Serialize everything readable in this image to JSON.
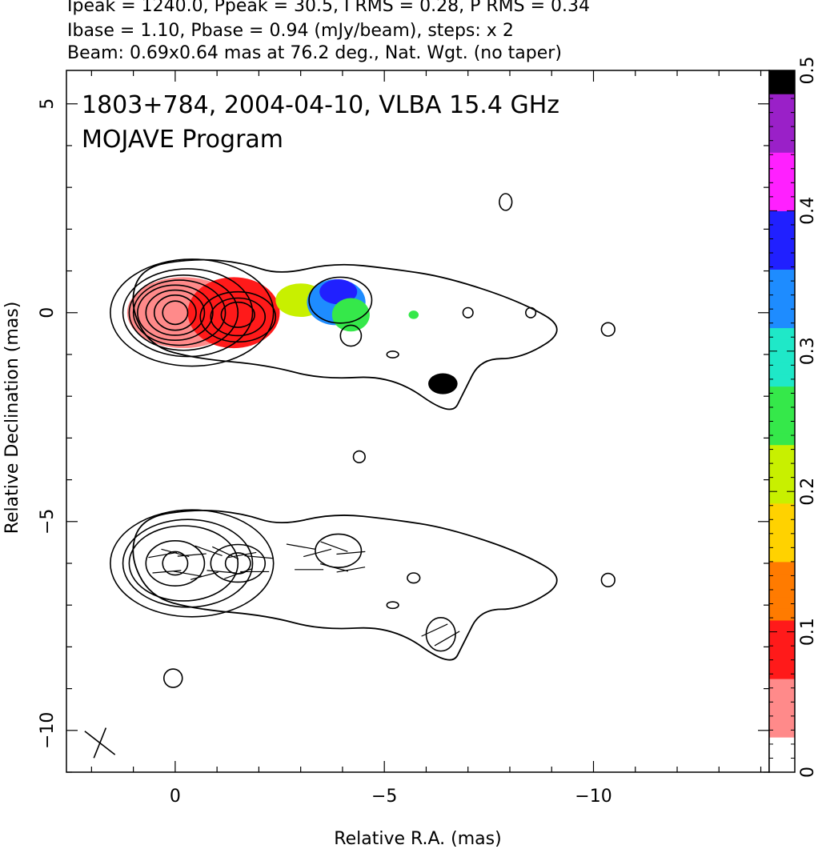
{
  "header": {
    "line1": "Ipeak = 1240.0, Ppeak = 30.5, I RMS = 0.28, P RMS = 0.34",
    "line2": "Ibase = 1.10, Pbase = 0.94 (mJy/beam), steps: x 2",
    "line3": "Beam: 0.69x0.64 mas at 76.2 deg., Nat. Wgt. (no taper)"
  },
  "chart_data": {
    "type": "heatmap",
    "annotation": [
      "1803+784, 2004-04-10, VLBA 15.4 GHz",
      "MOJAVE Program"
    ],
    "xlabel": "Relative R.A. (mas)",
    "ylabel": "Relative Declination (mas)",
    "xlim": [
      2.6,
      -14.2
    ],
    "ylim": [
      -11.0,
      5.8
    ],
    "x_ticks": [
      {
        "value": 0,
        "label": "0"
      },
      {
        "value": -5,
        "label": "−5"
      },
      {
        "value": -10,
        "label": "−10"
      }
    ],
    "y_ticks": [
      {
        "value": 5,
        "label": "5"
      },
      {
        "value": 0,
        "label": "0"
      },
      {
        "value": -5,
        "label": "−5"
      },
      {
        "value": -10,
        "label": "−10"
      }
    ],
    "colorbar": {
      "range": [
        0,
        0.5
      ],
      "ticks": [
        {
          "value": 0,
          "label": "0"
        },
        {
          "value": 0.1,
          "label": "0.1"
        },
        {
          "value": 0.2,
          "label": "0.2"
        },
        {
          "value": 0.3,
          "label": "0.3"
        },
        {
          "value": 0.4,
          "label": "0.4"
        },
        {
          "value": 0.5,
          "label": "0.5"
        }
      ],
      "colors": [
        "#ffffff",
        "#ff8a8a",
        "#ff1a1a",
        "#ff7b00",
        "#ffd200",
        "#c8f000",
        "#35e84a",
        "#1fe8c8",
        "#1e8cff",
        "#2020ff",
        "#ff20ff",
        "#9a20c8",
        "#000000"
      ]
    },
    "polarization_patches": [
      {
        "x": -0.2,
        "y": 0.0,
        "rx": 1.35,
        "ry": 0.85,
        "value": 0.05
      },
      {
        "x": -1.4,
        "y": 0.0,
        "rx": 1.1,
        "ry": 0.85,
        "value": 0.09
      },
      {
        "x": -1.7,
        "y": -0.25,
        "rx": 0.55,
        "ry": 0.45,
        "value": 0.1
      },
      {
        "x": -3.0,
        "y": 0.3,
        "rx": 0.6,
        "ry": 0.4,
        "value": 0.22
      },
      {
        "x": -3.85,
        "y": 0.25,
        "rx": 0.7,
        "ry": 0.55,
        "value": 0.32
      },
      {
        "x": -3.9,
        "y": 0.5,
        "rx": 0.45,
        "ry": 0.3,
        "value": 0.38
      },
      {
        "x": -4.2,
        "y": -0.05,
        "rx": 0.45,
        "ry": 0.4,
        "value": 0.24
      },
      {
        "x": -5.7,
        "y": -0.05,
        "rx": 0.12,
        "ry": 0.1,
        "value": 0.26
      },
      {
        "x": -6.4,
        "y": -1.7,
        "rx": 0.35,
        "ry": 0.25,
        "value": 0.5
      }
    ],
    "stokes_i_contours_top": [
      {
        "x": -0.4,
        "y": 0.0,
        "rx": 1.95,
        "ry": 1.28
      },
      {
        "x": -0.3,
        "y": 0.0,
        "rx": 1.55,
        "ry": 1.05
      },
      {
        "x": -0.2,
        "y": 0.0,
        "rx": 1.3,
        "ry": 0.9
      },
      {
        "x": -0.1,
        "y": 0.0,
        "rx": 1.1,
        "ry": 0.78
      },
      {
        "x": 0.0,
        "y": 0.0,
        "rx": 0.9,
        "ry": 0.66
      },
      {
        "x": 0.0,
        "y": 0.0,
        "rx": 0.7,
        "ry": 0.54
      },
      {
        "x": 0.0,
        "y": 0.0,
        "rx": 0.5,
        "ry": 0.42
      },
      {
        "x": 0.0,
        "y": 0.0,
        "rx": 0.3,
        "ry": 0.28
      },
      {
        "x": -1.5,
        "y": -0.1,
        "rx": 0.9,
        "ry": 0.6
      },
      {
        "x": -1.5,
        "y": -0.1,
        "rx": 0.65,
        "ry": 0.45
      },
      {
        "x": -1.5,
        "y": -0.05,
        "rx": 0.4,
        "ry": 0.3
      },
      {
        "x": -3.95,
        "y": 0.3,
        "rx": 0.75,
        "ry": 0.55
      },
      {
        "x": -4.2,
        "y": -0.55,
        "rx": 0.25,
        "ry": 0.25
      },
      {
        "x": -7.9,
        "y": 2.65,
        "rx": 0.15,
        "ry": 0.2
      },
      {
        "x": -7.0,
        "y": 0.0,
        "rx": 0.12,
        "ry": 0.12
      },
      {
        "x": -8.5,
        "y": 0.0,
        "rx": 0.12,
        "ry": 0.12
      },
      {
        "x": -10.35,
        "y": -0.4,
        "rx": 0.16,
        "ry": 0.16
      },
      {
        "x": -5.2,
        "y": -1.0,
        "rx": 0.14,
        "ry": 0.08
      },
      {
        "x": -4.4,
        "y": -3.45,
        "rx": 0.14,
        "ry": 0.14
      }
    ],
    "stokes_i_contours_bottom": [
      {
        "x": -0.4,
        "y": -6.0,
        "rx": 1.95,
        "ry": 1.28
      },
      {
        "x": -0.3,
        "y": -6.0,
        "rx": 1.55,
        "ry": 1.05
      },
      {
        "x": -0.2,
        "y": -6.0,
        "rx": 1.3,
        "ry": 0.9
      },
      {
        "x": 0.0,
        "y": -6.0,
        "rx": 0.7,
        "ry": 0.54
      },
      {
        "x": 0.0,
        "y": -6.0,
        "rx": 0.3,
        "ry": 0.28
      },
      {
        "x": -1.5,
        "y": -6.0,
        "rx": 0.65,
        "ry": 0.45
      },
      {
        "x": -1.5,
        "y": -6.0,
        "rx": 0.3,
        "ry": 0.25
      },
      {
        "x": -3.9,
        "y": -5.7,
        "rx": 0.55,
        "ry": 0.4
      },
      {
        "x": -5.7,
        "y": -6.35,
        "rx": 0.15,
        "ry": 0.12
      },
      {
        "x": -6.35,
        "y": -7.7,
        "rx": 0.35,
        "ry": 0.4
      },
      {
        "x": -10.35,
        "y": -6.4,
        "rx": 0.16,
        "ry": 0.16
      },
      {
        "x": -5.2,
        "y": -7.0,
        "rx": 0.14,
        "ry": 0.08
      },
      {
        "x": 0.05,
        "y": -8.75,
        "rx": 0.22,
        "ry": 0.22
      }
    ],
    "beam": {
      "x": 1.8,
      "y": -10.3,
      "major": 0.69,
      "minor": 0.64,
      "pa_deg": 76.2
    },
    "grid": false
  }
}
